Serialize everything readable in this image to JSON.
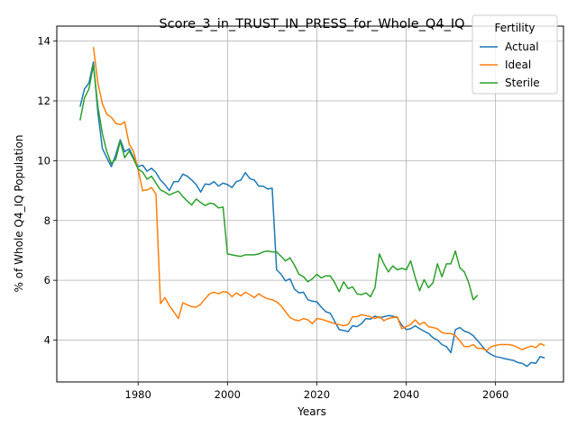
{
  "chart_data": {
    "type": "line",
    "title": "Score_3_in_TRUST_IN_PRESS_for_Whole_Q4_IQ",
    "xlabel": "Years",
    "ylabel": "% of Whole Q4_IQ Population",
    "xlim": [
      1961.8,
      2075.2
    ],
    "ylim": [
      2.6,
      14.5
    ],
    "xticks": [
      1980,
      2000,
      2020,
      2040,
      2060
    ],
    "yticks": [
      4,
      6,
      8,
      10,
      12,
      14
    ],
    "grid": true,
    "legend": {
      "title": "Fertility",
      "placement": "top-right"
    },
    "series": [
      {
        "name": "Actual",
        "color": "#1f77b4",
        "points": [
          [
            1967,
            11.8
          ],
          [
            1968,
            12.4
          ],
          [
            1969,
            12.6
          ],
          [
            1970,
            13.3
          ],
          [
            1971,
            11.6
          ],
          [
            1972,
            10.4
          ],
          [
            1973,
            10.1
          ],
          [
            1974,
            9.8
          ],
          [
            1975,
            10.2
          ],
          [
            1976,
            10.7
          ],
          [
            1977,
            10.3
          ],
          [
            1978,
            10.4
          ],
          [
            1979,
            10.1
          ],
          [
            1980,
            9.8
          ],
          [
            1981,
            9.85
          ],
          [
            1982,
            9.65
          ],
          [
            1983,
            9.75
          ],
          [
            1984,
            9.6
          ],
          [
            1985,
            9.35
          ],
          [
            1986,
            9.2
          ],
          [
            1987,
            9.0
          ],
          [
            1988,
            9.3
          ],
          [
            1989,
            9.3
          ],
          [
            1990,
            9.55
          ],
          [
            1991,
            9.48
          ],
          [
            1992,
            9.35
          ],
          [
            1993,
            9.2
          ],
          [
            1994,
            8.95
          ],
          [
            1995,
            9.22
          ],
          [
            1996,
            9.2
          ],
          [
            1997,
            9.3
          ],
          [
            1998,
            9.15
          ],
          [
            1999,
            9.25
          ],
          [
            2000,
            9.2
          ],
          [
            2001,
            9.1
          ],
          [
            2002,
            9.3
          ],
          [
            2003,
            9.35
          ],
          [
            2004,
            9.6
          ],
          [
            2005,
            9.4
          ],
          [
            2006,
            9.35
          ],
          [
            2007,
            9.15
          ],
          [
            2008,
            9.15
          ],
          [
            2009,
            9.05
          ],
          [
            2010,
            9.08
          ],
          [
            2011,
            6.35
          ],
          [
            2012,
            6.2
          ],
          [
            2013,
            5.98
          ],
          [
            2014,
            6.05
          ],
          [
            2015,
            5.7
          ],
          [
            2016,
            5.58
          ],
          [
            2017,
            5.6
          ],
          [
            2018,
            5.35
          ],
          [
            2019,
            5.3
          ],
          [
            2020,
            5.28
          ],
          [
            2021,
            5.1
          ],
          [
            2022,
            4.95
          ],
          [
            2023,
            4.9
          ],
          [
            2024,
            4.62
          ],
          [
            2025,
            4.35
          ],
          [
            2026,
            4.32
          ],
          [
            2027,
            4.28
          ],
          [
            2028,
            4.48
          ],
          [
            2029,
            4.45
          ],
          [
            2030,
            4.55
          ],
          [
            2031,
            4.72
          ],
          [
            2032,
            4.7
          ],
          [
            2033,
            4.8
          ],
          [
            2034,
            4.75
          ],
          [
            2035,
            4.78
          ],
          [
            2036,
            4.82
          ],
          [
            2037,
            4.8
          ],
          [
            2038,
            4.75
          ],
          [
            2039,
            4.5
          ],
          [
            2040,
            4.35
          ],
          [
            2041,
            4.38
          ],
          [
            2042,
            4.48
          ],
          [
            2043,
            4.38
          ],
          [
            2044,
            4.3
          ],
          [
            2045,
            4.22
          ],
          [
            2046,
            4.08
          ],
          [
            2047,
            4.0
          ],
          [
            2048,
            3.85
          ],
          [
            2049,
            3.78
          ],
          [
            2050,
            3.58
          ],
          [
            2051,
            4.35
          ],
          [
            2052,
            4.42
          ],
          [
            2053,
            4.3
          ],
          [
            2054,
            4.25
          ],
          [
            2055,
            4.15
          ],
          [
            2056,
            3.98
          ],
          [
            2057,
            3.8
          ],
          [
            2058,
            3.62
          ],
          [
            2059,
            3.52
          ],
          [
            2060,
            3.45
          ],
          [
            2061,
            3.42
          ],
          [
            2062,
            3.38
          ],
          [
            2063,
            3.35
          ],
          [
            2064,
            3.32
          ],
          [
            2065,
            3.25
          ],
          [
            2066,
            3.22
          ],
          [
            2067,
            3.12
          ],
          [
            2068,
            3.25
          ],
          [
            2069,
            3.22
          ],
          [
            2070,
            3.45
          ],
          [
            2071,
            3.4
          ]
        ]
      },
      {
        "name": "Ideal",
        "color": "#ff7f0e",
        "points": [
          [
            1970,
            13.8
          ],
          [
            1971,
            12.6
          ],
          [
            1972,
            11.9
          ],
          [
            1973,
            11.55
          ],
          [
            1974,
            11.45
          ],
          [
            1975,
            11.25
          ],
          [
            1976,
            11.2
          ],
          [
            1977,
            11.3
          ],
          [
            1978,
            10.55
          ],
          [
            1979,
            10.3
          ],
          [
            1980,
            9.7
          ],
          [
            1981,
            9.0
          ],
          [
            1982,
            9.02
          ],
          [
            1983,
            9.1
          ],
          [
            1984,
            8.88
          ],
          [
            1985,
            5.22
          ],
          [
            1986,
            5.42
          ],
          [
            1987,
            5.15
          ],
          [
            1988,
            4.95
          ],
          [
            1989,
            4.72
          ],
          [
            1990,
            5.25
          ],
          [
            1991,
            5.18
          ],
          [
            1992,
            5.12
          ],
          [
            1993,
            5.1
          ],
          [
            1994,
            5.2
          ],
          [
            1995,
            5.38
          ],
          [
            1996,
            5.55
          ],
          [
            1997,
            5.6
          ],
          [
            1998,
            5.55
          ],
          [
            1999,
            5.62
          ],
          [
            2000,
            5.6
          ],
          [
            2001,
            5.45
          ],
          [
            2002,
            5.58
          ],
          [
            2003,
            5.48
          ],
          [
            2004,
            5.6
          ],
          [
            2005,
            5.52
          ],
          [
            2006,
            5.42
          ],
          [
            2007,
            5.55
          ],
          [
            2008,
            5.45
          ],
          [
            2009,
            5.38
          ],
          [
            2010,
            5.35
          ],
          [
            2011,
            5.28
          ],
          [
            2012,
            5.15
          ],
          [
            2013,
            4.95
          ],
          [
            2014,
            4.75
          ],
          [
            2015,
            4.68
          ],
          [
            2016,
            4.65
          ],
          [
            2017,
            4.72
          ],
          [
            2018,
            4.68
          ],
          [
            2019,
            4.55
          ],
          [
            2020,
            4.72
          ],
          [
            2021,
            4.7
          ],
          [
            2022,
            4.65
          ],
          [
            2023,
            4.6
          ],
          [
            2024,
            4.55
          ],
          [
            2025,
            4.52
          ],
          [
            2026,
            4.48
          ],
          [
            2027,
            4.52
          ],
          [
            2028,
            4.78
          ],
          [
            2029,
            4.78
          ],
          [
            2030,
            4.85
          ],
          [
            2031,
            4.82
          ],
          [
            2032,
            4.78
          ],
          [
            2033,
            4.72
          ],
          [
            2034,
            4.78
          ],
          [
            2035,
            4.65
          ],
          [
            2036,
            4.72
          ],
          [
            2037,
            4.75
          ],
          [
            2038,
            4.78
          ],
          [
            2039,
            4.38
          ],
          [
            2040,
            4.45
          ],
          [
            2041,
            4.52
          ],
          [
            2042,
            4.68
          ],
          [
            2043,
            4.52
          ],
          [
            2044,
            4.6
          ],
          [
            2045,
            4.45
          ],
          [
            2046,
            4.42
          ],
          [
            2047,
            4.38
          ],
          [
            2048,
            4.25
          ],
          [
            2049,
            4.22
          ],
          [
            2050,
            4.22
          ],
          [
            2051,
            4.15
          ],
          [
            2052,
            3.98
          ],
          [
            2053,
            3.78
          ],
          [
            2054,
            3.78
          ],
          [
            2055,
            3.85
          ],
          [
            2056,
            3.72
          ],
          [
            2057,
            3.72
          ],
          [
            2058,
            3.65
          ],
          [
            2059,
            3.78
          ],
          [
            2060,
            3.82
          ],
          [
            2061,
            3.85
          ],
          [
            2062,
            3.85
          ],
          [
            2063,
            3.85
          ],
          [
            2064,
            3.82
          ],
          [
            2065,
            3.75
          ],
          [
            2066,
            3.68
          ],
          [
            2067,
            3.75
          ],
          [
            2068,
            3.8
          ],
          [
            2069,
            3.75
          ],
          [
            2070,
            3.88
          ],
          [
            2071,
            3.82
          ]
        ]
      },
      {
        "name": "Sterile",
        "color": "#2ca02c",
        "points": [
          [
            1967,
            11.35
          ],
          [
            1968,
            12.1
          ],
          [
            1969,
            12.4
          ],
          [
            1970,
            13.2
          ],
          [
            1971,
            11.8
          ],
          [
            1972,
            10.9
          ],
          [
            1973,
            10.3
          ],
          [
            1974,
            9.9
          ],
          [
            1975,
            10.05
          ],
          [
            1976,
            10.65
          ],
          [
            1977,
            10.1
          ],
          [
            1978,
            10.32
          ],
          [
            1979,
            10.05
          ],
          [
            1980,
            9.72
          ],
          [
            1981,
            9.62
          ],
          [
            1982,
            9.38
          ],
          [
            1983,
            9.48
          ],
          [
            1984,
            9.25
          ],
          [
            1985,
            9.02
          ],
          [
            1986,
            8.95
          ],
          [
            1987,
            8.85
          ],
          [
            1988,
            8.92
          ],
          [
            1989,
            8.98
          ],
          [
            1990,
            8.8
          ],
          [
            1991,
            8.65
          ],
          [
            1992,
            8.52
          ],
          [
            1993,
            8.72
          ],
          [
            1994,
            8.6
          ],
          [
            1995,
            8.5
          ],
          [
            1996,
            8.58
          ],
          [
            1997,
            8.55
          ],
          [
            1998,
            8.42
          ],
          [
            1999,
            8.45
          ],
          [
            2000,
            6.88
          ],
          [
            2001,
            6.85
          ],
          [
            2002,
            6.82
          ],
          [
            2003,
            6.8
          ],
          [
            2004,
            6.85
          ],
          [
            2005,
            6.85
          ],
          [
            2006,
            6.85
          ],
          [
            2007,
            6.88
          ],
          [
            2008,
            6.95
          ],
          [
            2009,
            6.98
          ],
          [
            2010,
            6.95
          ],
          [
            2011,
            6.95
          ],
          [
            2012,
            6.8
          ],
          [
            2013,
            6.65
          ],
          [
            2014,
            6.75
          ],
          [
            2015,
            6.5
          ],
          [
            2016,
            6.2
          ],
          [
            2017,
            6.12
          ],
          [
            2018,
            5.95
          ],
          [
            2019,
            6.05
          ],
          [
            2020,
            6.2
          ],
          [
            2021,
            6.08
          ],
          [
            2022,
            6.15
          ],
          [
            2023,
            6.15
          ],
          [
            2024,
            5.92
          ],
          [
            2025,
            5.62
          ],
          [
            2026,
            5.95
          ],
          [
            2027,
            5.72
          ],
          [
            2028,
            5.78
          ],
          [
            2029,
            5.55
          ],
          [
            2030,
            5.52
          ],
          [
            2031,
            5.58
          ],
          [
            2032,
            5.45
          ],
          [
            2033,
            5.75
          ],
          [
            2034,
            6.88
          ],
          [
            2035,
            6.55
          ],
          [
            2036,
            6.28
          ],
          [
            2037,
            6.48
          ],
          [
            2038,
            6.35
          ],
          [
            2039,
            6.4
          ],
          [
            2040,
            6.35
          ],
          [
            2041,
            6.65
          ],
          [
            2042,
            6.1
          ],
          [
            2043,
            5.65
          ],
          [
            2044,
            6.02
          ],
          [
            2045,
            5.75
          ],
          [
            2046,
            5.92
          ],
          [
            2047,
            6.55
          ],
          [
            2048,
            6.12
          ],
          [
            2049,
            6.55
          ],
          [
            2050,
            6.55
          ],
          [
            2051,
            6.98
          ],
          [
            2052,
            6.42
          ],
          [
            2053,
            6.28
          ],
          [
            2054,
            5.92
          ],
          [
            2055,
            5.35
          ],
          [
            2056,
            5.5
          ]
        ]
      }
    ]
  }
}
